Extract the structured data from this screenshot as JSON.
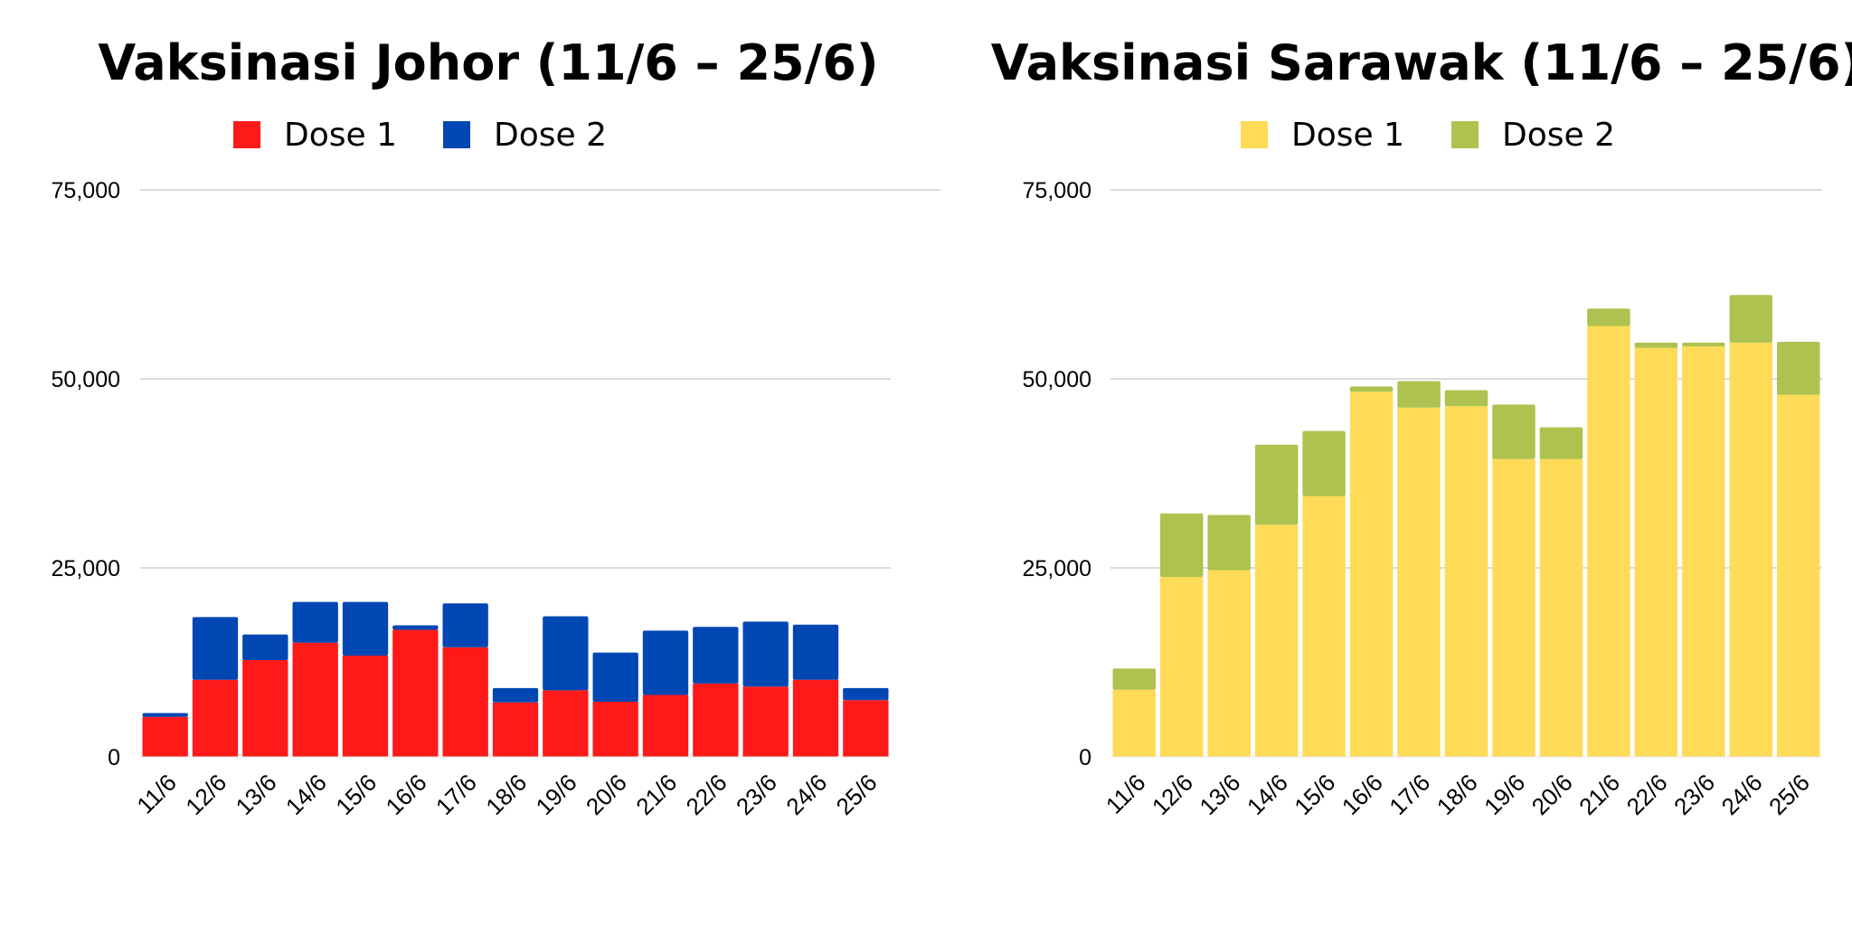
{
  "chart_data": [
    {
      "type": "bar",
      "stacked": true,
      "title": "Vaksinasi Johor (11/6 – 25/6)",
      "categories": [
        "11/6",
        "12/6",
        "13/6",
        "14/6",
        "15/6",
        "16/6",
        "17/6",
        "18/6",
        "19/6",
        "20/6",
        "21/6",
        "22/6",
        "23/6",
        "24/6",
        "25/6"
      ],
      "series": [
        {
          "name": "Dose 1",
          "color": "#ff1a1a",
          "values": [
            5300,
            10200,
            12800,
            15100,
            13400,
            16800,
            14500,
            7200,
            8800,
            7300,
            8200,
            9700,
            9300,
            10200,
            7500
          ]
        },
        {
          "name": "Dose 2",
          "color": "#0047b3",
          "values": [
            500,
            8300,
            3400,
            5400,
            7100,
            600,
            5800,
            1900,
            9800,
            6500,
            8500,
            7500,
            8600,
            7300,
            1600
          ]
        }
      ],
      "yticks": [
        "0",
        "25,000",
        "50,000",
        "75,000"
      ],
      "ylim": [
        0,
        75000
      ],
      "legend_position": "top",
      "grid": true
    },
    {
      "type": "bar",
      "stacked": true,
      "title": "Vaksinasi Sarawak (11/6 – 25/6)",
      "categories": [
        "11/6",
        "12/6",
        "13/6",
        "14/6",
        "15/6",
        "16/6",
        "17/6",
        "18/6",
        "19/6",
        "20/6",
        "21/6",
        "22/6",
        "23/6",
        "24/6",
        "25/6"
      ],
      "series": [
        {
          "name": "Dose 1",
          "color": "#ffdb58",
          "values": [
            8900,
            23800,
            24700,
            30700,
            34500,
            48300,
            46200,
            46400,
            39400,
            39400,
            57000,
            54100,
            54300,
            54800,
            47900
          ]
        },
        {
          "name": "Dose 2",
          "color": "#adc24f",
          "values": [
            2800,
            8400,
            7300,
            10600,
            8600,
            700,
            3500,
            2100,
            7200,
            4200,
            2300,
            700,
            500,
            6300,
            7000
          ]
        }
      ],
      "yticks": [
        "0",
        "25,000",
        "50,000",
        "75,000"
      ],
      "ylim": [
        0,
        75000
      ],
      "legend_position": "top",
      "grid": true
    }
  ]
}
